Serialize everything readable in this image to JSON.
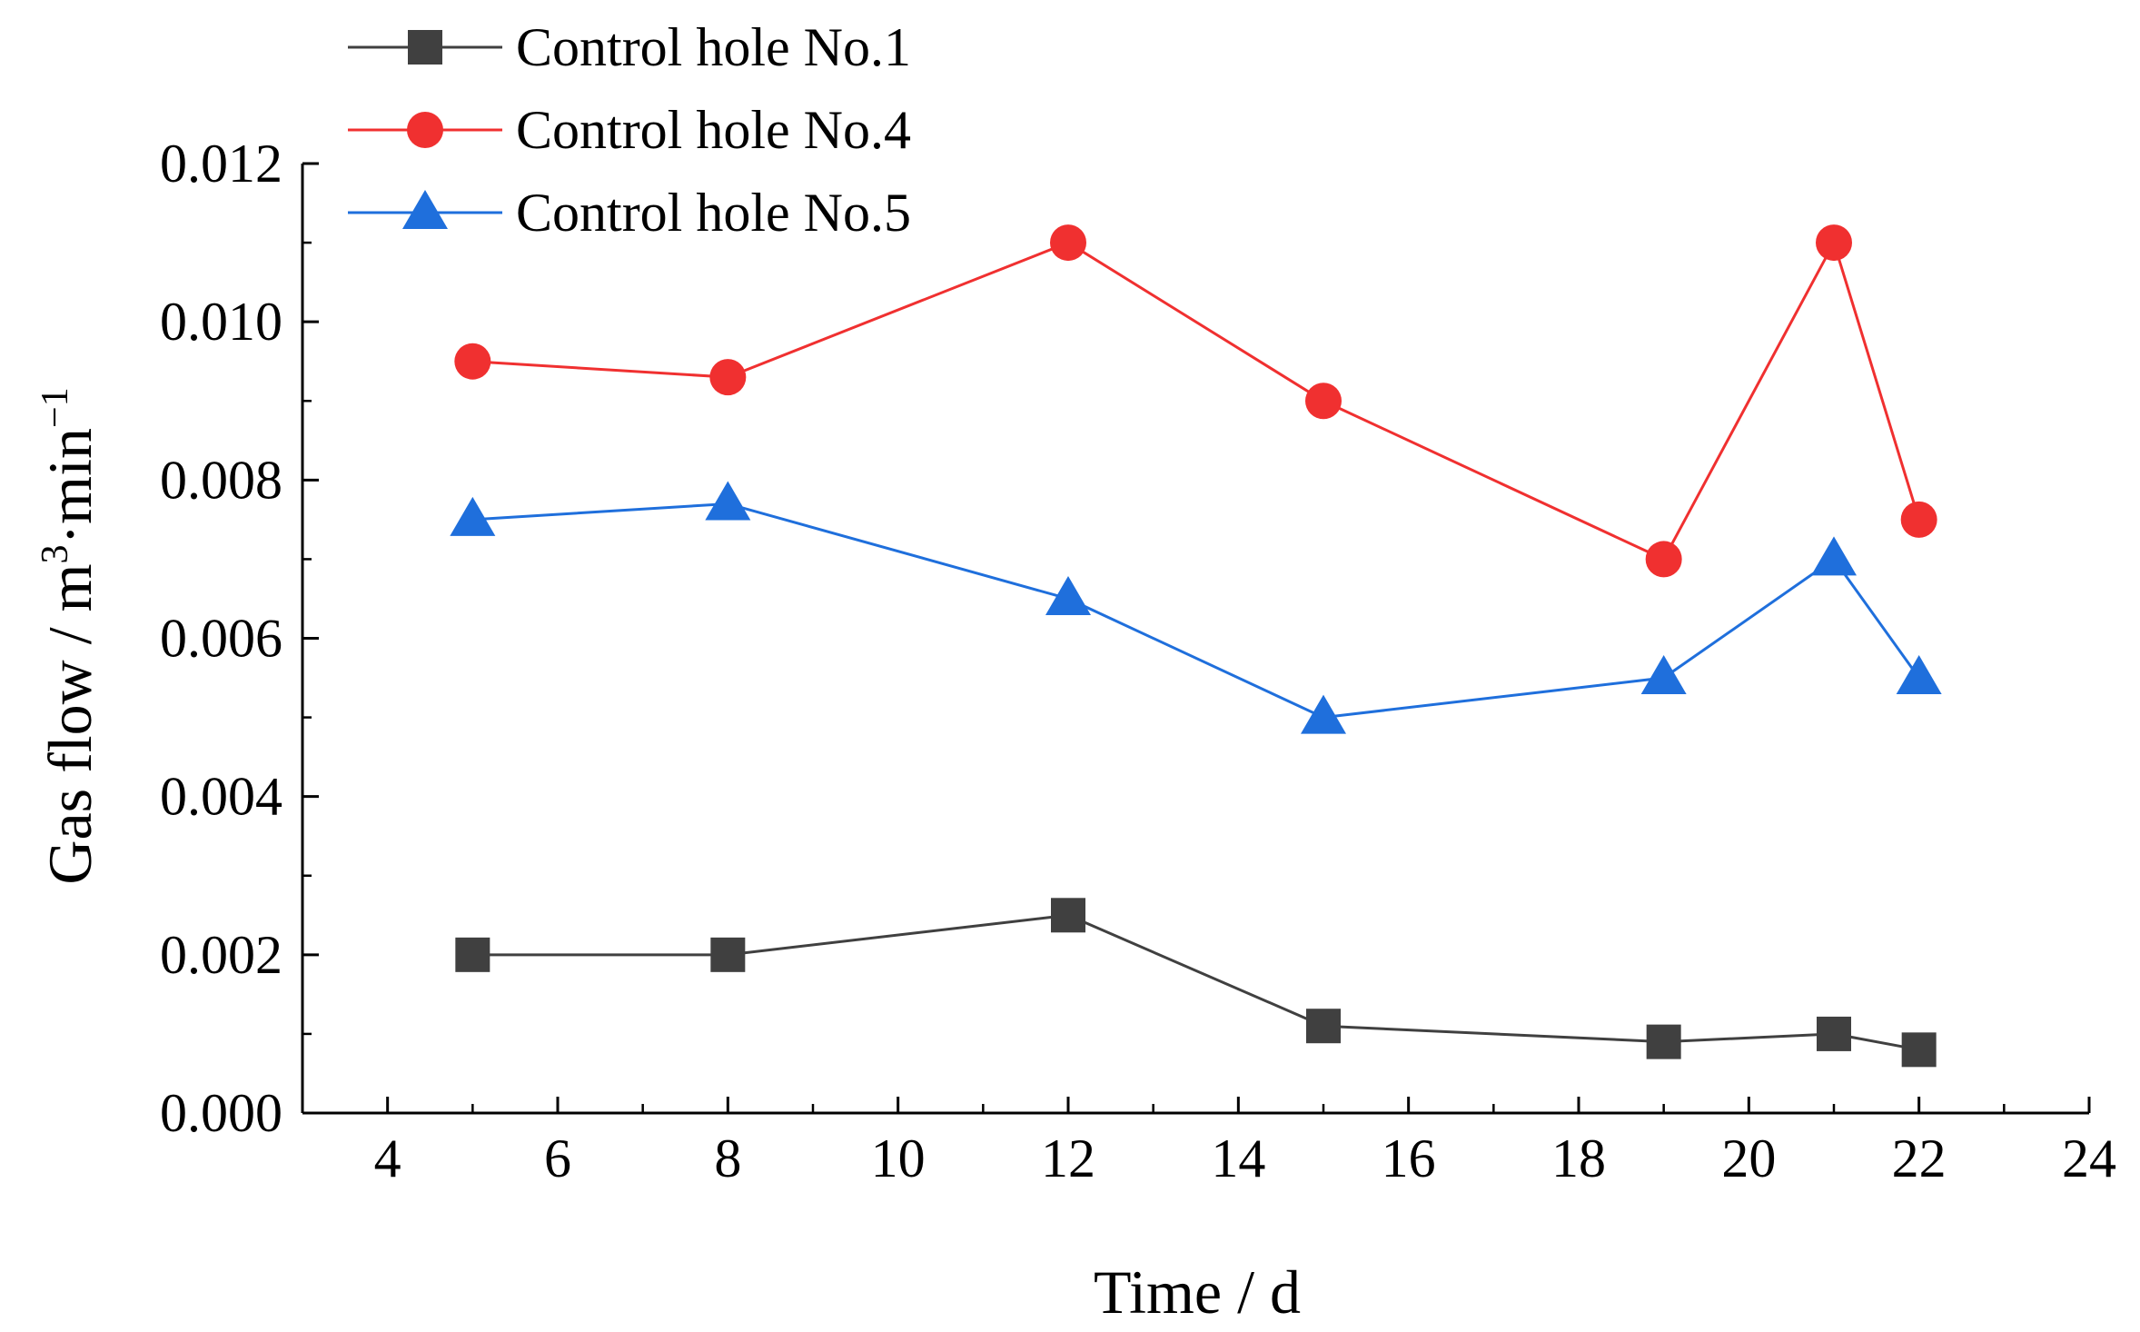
{
  "chart_data": {
    "type": "line",
    "title": "",
    "xlabel": "Time / d",
    "ylabel": "Gas flow / m³·min⁻¹",
    "ylabel_parts": {
      "base": "Gas flow / m",
      "sup1": "3",
      "mid": "·min",
      "sup2": "−1"
    },
    "xlim": [
      3,
      24
    ],
    "ylim": [
      0.0,
      0.012
    ],
    "x_ticks": [
      4,
      6,
      8,
      10,
      12,
      14,
      16,
      18,
      20,
      22,
      24
    ],
    "x_tick_labels": [
      "4",
      "6",
      "8",
      "10",
      "12",
      "14",
      "16",
      "18",
      "20",
      "22",
      "24"
    ],
    "y_ticks": [
      0.0,
      0.002,
      0.004,
      0.006,
      0.008,
      0.01,
      0.012
    ],
    "y_tick_labels": [
      "0.000",
      "0.002",
      "0.004",
      "0.006",
      "0.008",
      "0.010",
      "0.012"
    ],
    "grid": false,
    "legend_position": "top-left",
    "x": [
      5,
      8,
      12,
      15,
      19,
      21,
      22
    ],
    "series": [
      {
        "name": "Control hole No.1",
        "marker": "square",
        "color": "#404040",
        "values": [
          0.002,
          0.002,
          0.0025,
          0.0011,
          0.0009,
          0.001,
          0.0008
        ]
      },
      {
        "name": "Control hole No.4",
        "marker": "circle",
        "color": "#f03030",
        "values": [
          0.0095,
          0.0093,
          0.011,
          0.009,
          0.007,
          0.011,
          0.0075
        ]
      },
      {
        "name": "Control hole No.5",
        "marker": "triangle",
        "color": "#1f6fdc",
        "values": [
          0.0075,
          0.0077,
          0.0065,
          0.005,
          0.0055,
          0.007,
          0.0055
        ]
      }
    ]
  }
}
